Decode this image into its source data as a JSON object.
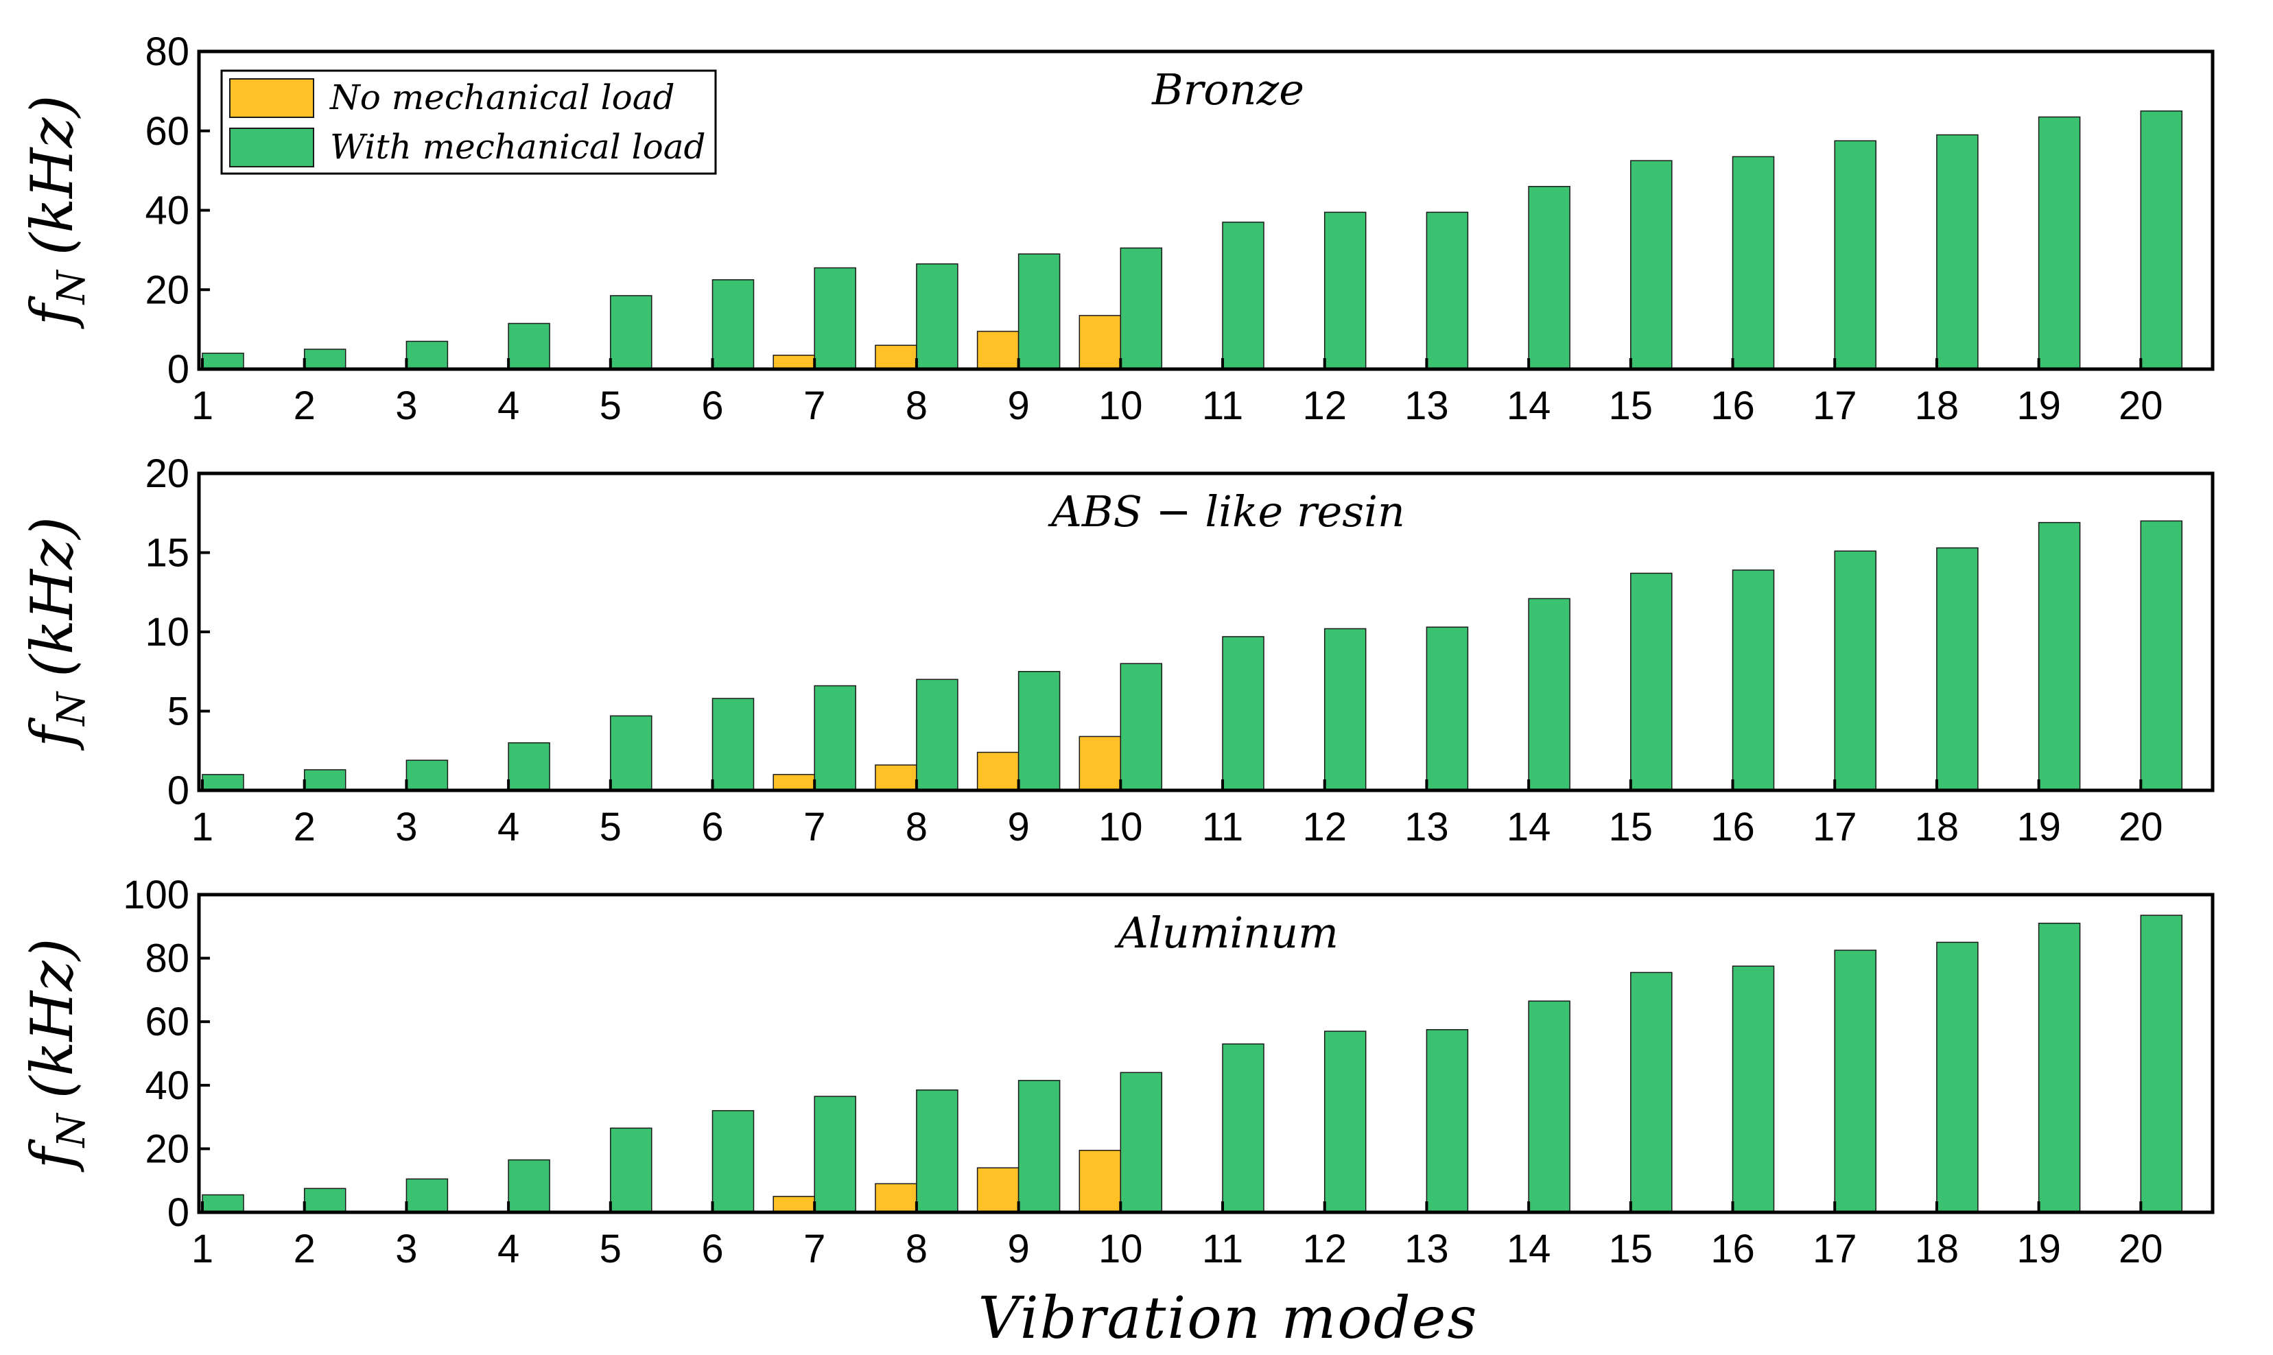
{
  "figure": {
    "xlabel": "Vibration modes",
    "legend": {
      "placement": "top-left",
      "entries": [
        {
          "label": "No mechanical load",
          "color": "#FFC125"
        },
        {
          "label": "With mechanical load",
          "color": "#3BC270"
        }
      ]
    }
  },
  "chart_data": [
    {
      "type": "bar",
      "title": "Bronze",
      "xlabel": "",
      "ylabel": "f_N (kHz)",
      "ylabel_main": "f",
      "ylabel_sub": "N",
      "ylabel_unit": "(kHz)",
      "ylim": [
        0,
        80
      ],
      "yticks": [
        0,
        20,
        40,
        60,
        80
      ],
      "categories": [
        "1",
        "2",
        "3",
        "4",
        "5",
        "6",
        "7",
        "8",
        "9",
        "10",
        "11",
        "12",
        "13",
        "14",
        "15",
        "16",
        "17",
        "18",
        "19",
        "20"
      ],
      "series": [
        {
          "name": "No mechanical load",
          "color": "#FFC125",
          "values": [
            null,
            null,
            null,
            null,
            null,
            null,
            3.5,
            6,
            9.5,
            13.5,
            null,
            null,
            null,
            null,
            null,
            null,
            null,
            null,
            null,
            null
          ]
        },
        {
          "name": "With mechanical load",
          "color": "#3BC270",
          "values": [
            4,
            5,
            7,
            11.5,
            18.5,
            22.5,
            25.5,
            26.5,
            29,
            30.5,
            37,
            39.5,
            39.5,
            46,
            52.5,
            53.5,
            57.5,
            59,
            63.5,
            65
          ]
        }
      ]
    },
    {
      "type": "bar",
      "title": "ABS − like resin",
      "xlabel": "",
      "ylabel": "f_N (kHz)",
      "ylabel_main": "f",
      "ylabel_sub": "N",
      "ylabel_unit": "(kHz)",
      "ylim": [
        0,
        20
      ],
      "yticks": [
        0,
        5,
        10,
        15,
        20
      ],
      "categories": [
        "1",
        "2",
        "3",
        "4",
        "5",
        "6",
        "7",
        "8",
        "9",
        "10",
        "11",
        "12",
        "13",
        "14",
        "15",
        "16",
        "17",
        "18",
        "19",
        "20"
      ],
      "series": [
        {
          "name": "No mechanical load",
          "color": "#FFC125",
          "values": [
            null,
            null,
            null,
            null,
            null,
            null,
            1,
            1.6,
            2.4,
            3.4,
            null,
            null,
            null,
            null,
            null,
            null,
            null,
            null,
            null,
            null
          ]
        },
        {
          "name": "With mechanical load",
          "color": "#3BC270",
          "values": [
            1,
            1.3,
            1.9,
            3,
            4.7,
            5.8,
            6.6,
            7,
            7.5,
            8,
            9.7,
            10.2,
            10.3,
            12.1,
            13.7,
            13.9,
            15.1,
            15.3,
            16.9,
            17
          ]
        }
      ]
    },
    {
      "type": "bar",
      "title": "Aluminum",
      "xlabel": "Vibration modes",
      "ylabel": "f_N (kHz)",
      "ylabel_main": "f",
      "ylabel_sub": "N",
      "ylabel_unit": "(kHz)",
      "ylim": [
        0,
        100
      ],
      "yticks": [
        0,
        20,
        40,
        60,
        80,
        100
      ],
      "categories": [
        "1",
        "2",
        "3",
        "4",
        "5",
        "6",
        "7",
        "8",
        "9",
        "10",
        "11",
        "12",
        "13",
        "14",
        "15",
        "16",
        "17",
        "18",
        "19",
        "20"
      ],
      "series": [
        {
          "name": "No mechanical load",
          "color": "#FFC125",
          "values": [
            null,
            null,
            null,
            null,
            null,
            null,
            5,
            9,
            14,
            19.5,
            null,
            null,
            null,
            null,
            null,
            null,
            null,
            null,
            null,
            null
          ]
        },
        {
          "name": "With mechanical load",
          "color": "#3BC270",
          "values": [
            5.5,
            7.5,
            10.5,
            16.5,
            26.5,
            32,
            36.5,
            38.5,
            41.5,
            44,
            53,
            57,
            57.5,
            66.5,
            75.5,
            77.5,
            82.5,
            85,
            91,
            93.5
          ]
        }
      ]
    }
  ]
}
